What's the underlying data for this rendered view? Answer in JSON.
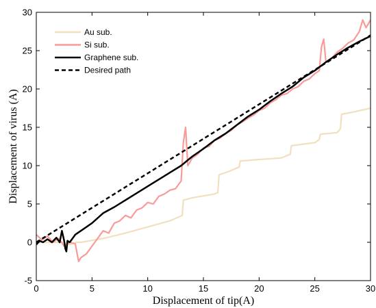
{
  "chart_data": {
    "type": "line",
    "xlabel": "Displacement of tip(A)",
    "ylabel": "Displacement of virus (A)",
    "xlim": [
      0,
      30
    ],
    "ylim": [
      -5,
      30
    ],
    "xticks": [
      0,
      5,
      10,
      15,
      20,
      25,
      30
    ],
    "yticks": [
      -5,
      0,
      5,
      10,
      15,
      20,
      25,
      30
    ],
    "grid": false,
    "legend_position": "top-left",
    "series": [
      {
        "name": "Au sub.",
        "color": "#f2dfbe",
        "style": "solid",
        "x": [
          0,
          2.4,
          3.0,
          3.6,
          4.0,
          6.0,
          8.0,
          10.0,
          12.0,
          13.1,
          13.2,
          14.0,
          16.0,
          16.3,
          16.4,
          17.2,
          18.2,
          18.3,
          20.0,
          22.0,
          22.8,
          22.9,
          25.0,
          25.4,
          25.5,
          27.0,
          27.3,
          27.4,
          28.5,
          30.0
        ],
        "y": [
          0,
          0,
          -0.3,
          0,
          0,
          0.5,
          1.2,
          2.0,
          2.8,
          3.5,
          5.5,
          5.8,
          6.3,
          6.5,
          8.8,
          9.2,
          9.8,
          10.6,
          10.8,
          11.0,
          11.5,
          12.6,
          13.0,
          13.4,
          14.1,
          14.3,
          14.8,
          16.7,
          17.0,
          17.5
        ]
      },
      {
        "name": "Si sub.",
        "color": "#f99a98",
        "style": "solid",
        "x": [
          0,
          0.5,
          1.0,
          1.5,
          2.0,
          2.5,
          3.0,
          3.5,
          3.8,
          4.0,
          4.5,
          5.0,
          5.5,
          6.0,
          6.5,
          7.0,
          7.5,
          8.0,
          8.5,
          9.0,
          9.5,
          10.0,
          10.5,
          11.0,
          11.5,
          12.0,
          12.5,
          13.0,
          13.2,
          13.4,
          13.6,
          14.0,
          14.5,
          15.0,
          15.5,
          16.0,
          16.5,
          17.0,
          17.5,
          18.0,
          18.5,
          19.0,
          19.5,
          20.0,
          20.5,
          21.0,
          21.5,
          22.0,
          22.5,
          23.0,
          23.5,
          24.0,
          24.5,
          25.0,
          25.4,
          25.6,
          25.8,
          26.0,
          26.5,
          27.0,
          27.5,
          28.0,
          28.5,
          29.0,
          29.3,
          29.6,
          30.0
        ],
        "y": [
          1.0,
          0.3,
          0.8,
          0.0,
          0.5,
          -0.5,
          0.0,
          -0.2,
          -2.5,
          -2.0,
          -1.5,
          -0.5,
          0.5,
          1.5,
          1.2,
          2.5,
          2.8,
          3.5,
          3.2,
          4.2,
          4.5,
          5.2,
          5.0,
          6.0,
          6.3,
          6.8,
          7.0,
          8.0,
          13.0,
          15.0,
          10.0,
          11.0,
          11.5,
          12.3,
          12.5,
          13.3,
          13.6,
          14.2,
          14.6,
          15.3,
          15.7,
          16.2,
          16.6,
          17.2,
          17.5,
          18.2,
          18.6,
          19.2,
          19.4,
          20.0,
          20.3,
          21.0,
          21.3,
          22.0,
          22.4,
          25.5,
          26.5,
          23.5,
          24.0,
          24.8,
          25.3,
          26.0,
          26.4,
          27.5,
          29.0,
          28.0,
          29.0
        ]
      },
      {
        "name": "Graphene sub.",
        "color": "#000000",
        "style": "solid",
        "x": [
          0,
          0.3,
          0.6,
          1.0,
          1.4,
          1.8,
          2.1,
          2.3,
          2.5,
          2.6,
          2.7,
          2.8,
          3.0,
          3.3,
          3.5,
          4.0,
          5.0,
          6.0,
          7.0,
          8.0,
          9.0,
          10.0,
          11.0,
          12.0,
          13.0,
          14.0,
          15.0,
          16.0,
          17.0,
          18.0,
          19.0,
          20.0,
          21.0,
          22.0,
          23.0,
          24.0,
          25.0,
          26.0,
          27.0,
          28.0,
          29.0,
          30.0
        ],
        "y": [
          -0.3,
          0.2,
          0.0,
          0.4,
          0.0,
          0.6,
          0.0,
          1.5,
          0.2,
          -0.8,
          -1.2,
          0.2,
          0.0,
          0.6,
          1.0,
          1.5,
          2.5,
          3.8,
          4.6,
          5.5,
          6.4,
          7.3,
          8.2,
          9.1,
          10.0,
          11.2,
          12.2,
          13.3,
          14.2,
          15.3,
          16.4,
          17.3,
          18.4,
          19.4,
          20.3,
          21.5,
          22.4,
          23.5,
          24.5,
          25.4,
          26.2,
          26.9
        ]
      },
      {
        "name": "Desired path",
        "color": "#000000",
        "style": "dashed",
        "x": [
          0,
          30
        ],
        "y": [
          0,
          27
        ]
      }
    ]
  }
}
